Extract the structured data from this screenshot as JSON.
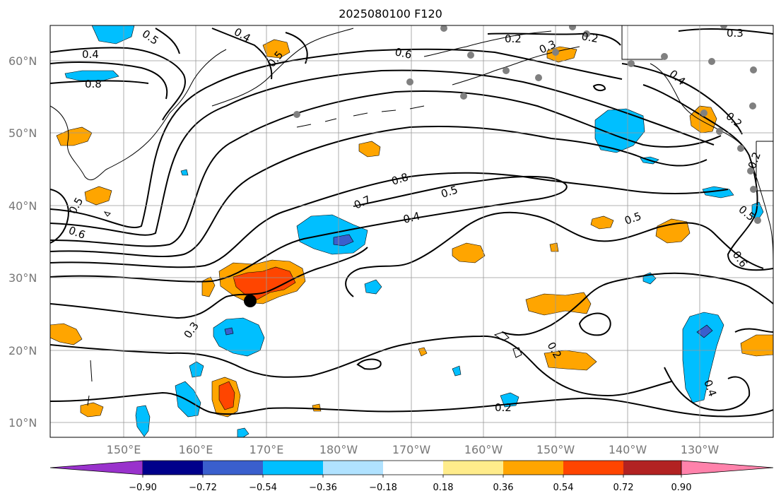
{
  "title": "2025080100 F120",
  "map": {
    "lat_labels": [
      "60°N",
      "50°N",
      "40°N",
      "30°N",
      "20°N",
      "10°N"
    ],
    "lon_labels": [
      "150°E",
      "160°E",
      "170°E",
      "180°W",
      "170°W",
      "160°W",
      "150°W",
      "140°W",
      "130°W"
    ],
    "contour_labels": [
      "0.4",
      "0.5",
      "0.4",
      "0.5",
      "0.6",
      "0.2",
      "0.2",
      "0.3",
      "0.3",
      "0.8",
      "0.4",
      "0.2",
      "0.2",
      "0.8",
      "0.7",
      "0.5",
      "0.4",
      "0.5",
      "0.6",
      "0.5",
      "0.6",
      "0.3",
      "0.2",
      "0.2",
      "0.4",
      "0.5"
    ],
    "colors": {
      "contour": "#000000",
      "grid": "#999999",
      "station": "#808080",
      "marker": "#000000"
    }
  },
  "colorbar": {
    "tick_labels": [
      "−0.90",
      "−0.72",
      "−0.54",
      "−0.36",
      "−0.18",
      "0.18",
      "0.36",
      "0.54",
      "0.72",
      "0.90"
    ],
    "colors": [
      "#9932cc",
      "#00008b",
      "#3a5fcd",
      "#00bfff",
      "#b0e2ff",
      "#ffffff",
      "#ffec8b",
      "#ffa500",
      "#ff4500",
      "#b22222",
      "#ff82ab"
    ]
  }
}
